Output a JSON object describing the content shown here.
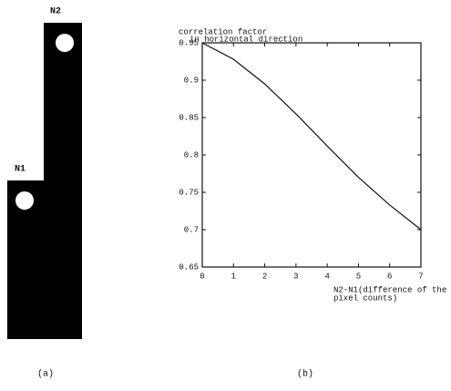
{
  "panel_a": {
    "top_label": "N2",
    "bottom_label": "N1",
    "caption": "(a)"
  },
  "chart_data": {
    "type": "line",
    "ylabel": [
      "correlation factor",
      "in horizontal direction"
    ],
    "xlabel": [
      "N2-N1(difference of the",
      "pixel counts)"
    ],
    "caption": "(b)",
    "x": [
      0,
      1,
      2,
      3,
      4,
      5,
      6,
      7
    ],
    "series": [
      {
        "color": "#111111",
        "values": [
          0.95,
          0.928,
          0.895,
          0.855,
          0.812,
          0.77,
          0.733,
          0.7
        ]
      }
    ],
    "xlim": [
      0,
      7
    ],
    "xticks": [
      0,
      1,
      2,
      3,
      4,
      5,
      6,
      7
    ],
    "ylim": [
      0.65,
      0.95
    ],
    "yticks": [
      0.65,
      0.7,
      0.75,
      0.8,
      0.85,
      0.9,
      0.95
    ]
  }
}
